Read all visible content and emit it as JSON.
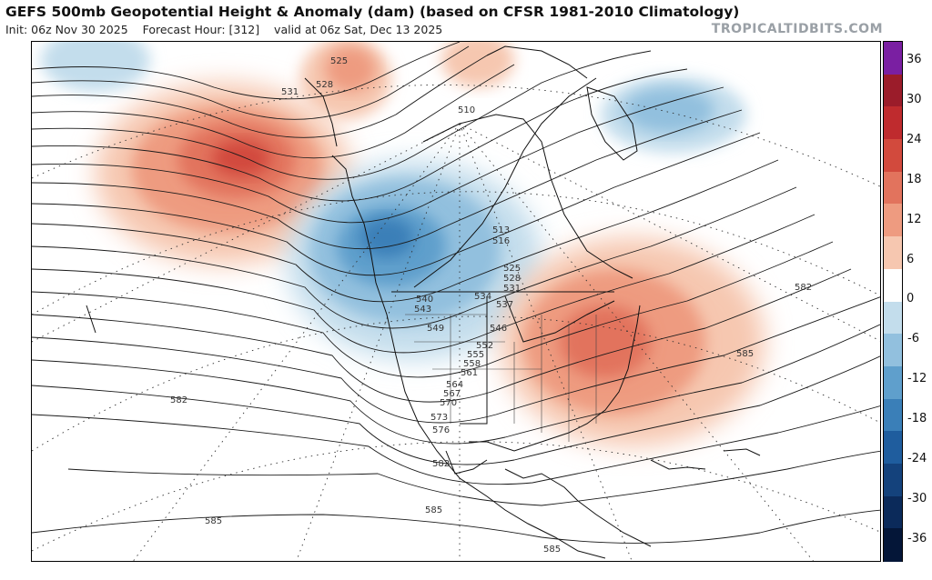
{
  "header": {
    "title": "GEFS 500mb Geopotential Height & Anomaly (dam) (based on CFSR 1981-2010 Climatology)",
    "init": "Init: 06z Nov 30 2025",
    "forecast_hour": "Forecast Hour: [312]",
    "valid": "valid at 06z Sat, Dec 13 2025",
    "brand": "TROPICALTIDBITS.COM"
  },
  "colorbar": {
    "ticks": [
      "36",
      "30",
      "24",
      "18",
      "12",
      "6",
      "0",
      "-6",
      "-12",
      "-18",
      "-24",
      "-30",
      "-36"
    ],
    "colors": [
      "#7a1fa2",
      "#9b1c2a",
      "#bf2b2e",
      "#d24a3d",
      "#e2735d",
      "#ee9b80",
      "#f6c7b0",
      "#ffffff",
      "#c3ddec",
      "#92c0de",
      "#5f9fcc",
      "#3a7fb8",
      "#1f5d9e",
      "#14427c",
      "#0b2a5a",
      "#041638"
    ]
  },
  "map": {
    "contour_labels": [
      "525",
      "528",
      "531",
      "510",
      "513",
      "516",
      "525",
      "528",
      "531",
      "534",
      "537",
      "540",
      "543",
      "546",
      "549",
      "552",
      "555",
      "558",
      "561",
      "564",
      "567",
      "570",
      "573",
      "576",
      "582",
      "582",
      "582",
      "585",
      "585",
      "585",
      "585"
    ]
  }
}
